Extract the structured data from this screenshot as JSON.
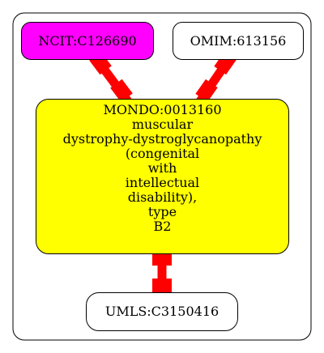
{
  "colors": {
    "ncit_fill": "#ff00ff",
    "mondo_fill": "#ffff00",
    "edge": "#ff0000",
    "default_fill": "#ffffff",
    "stroke": "#000000"
  },
  "nodes": {
    "ncit": {
      "label": "NCIT:C126690"
    },
    "omim": {
      "label": "OMIM:613156"
    },
    "mondo": {
      "label": "MONDO:0013160\nmuscular\ndystrophy-dystroglycanopathy\n(congenital\nwith\nintellectual\ndisability),\ntype\nB2"
    },
    "umls": {
      "label": "UMLS:C3150416"
    }
  },
  "edges": [
    {
      "from": "ncit",
      "to": "mondo"
    },
    {
      "from": "omim",
      "to": "mondo"
    },
    {
      "from": "mondo",
      "to": "umls"
    }
  ]
}
